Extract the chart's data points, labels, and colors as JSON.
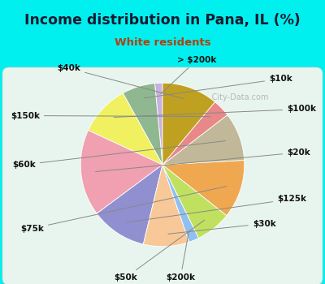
{
  "title": "Income distribution in Pana, IL (%)",
  "subtitle": "White residents",
  "labels": [
    "> $200k",
    "$10k",
    "$100k",
    "$20k",
    "$125k",
    "$30k",
    "$200k",
    "$50k",
    "$75k",
    "$60k",
    "$150k",
    "$40k"
  ],
  "sizes": [
    1.5,
    6.5,
    10.0,
    17.0,
    11.0,
    9.0,
    2.0,
    7.0,
    11.5,
    9.5,
    3.5,
    11.0
  ],
  "colors": [
    "#c8b0e0",
    "#90b890",
    "#f0f060",
    "#f0a0b0",
    "#9090d0",
    "#f8c898",
    "#90c0f0",
    "#c0e060",
    "#f0a850",
    "#c0b898",
    "#e88888",
    "#c0a020"
  ],
  "bg_cyan": "#00f0f0",
  "bg_chart": "#e8f5ee",
  "title_color": "#1a1a2e",
  "subtitle_color": "#b04010",
  "startangle": 90,
  "label_font": 7.5,
  "label_color": "#111111",
  "line_color": "#888888"
}
